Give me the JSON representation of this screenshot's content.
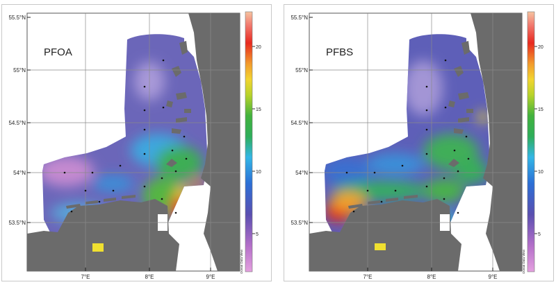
{
  "panels": [
    {
      "title": "PFOA",
      "lat_labels": [
        "55.5°N",
        "55°N",
        "54.5°N",
        "54°N",
        "53.5°N"
      ],
      "lon_labels": [
        "7°E",
        "8°E",
        "9°E"
      ],
      "colorbar_ticks": [
        "20",
        "15",
        "10",
        "5"
      ],
      "watermark": "Ocean Data View"
    },
    {
      "title": "PFBS",
      "lat_labels": [
        "55.5°N",
        "55°N",
        "54.5°N",
        "54°N",
        "53.5°N"
      ],
      "lon_labels": [
        "7°E",
        "8°E",
        "9°E"
      ],
      "colorbar_ticks": [
        "20",
        "15",
        "10",
        "5"
      ],
      "watermark": "Ocean Data View"
    }
  ],
  "colors": {
    "land": "#6b6b6b",
    "grid": "#8a8a8a",
    "low": "#6f63b5",
    "mid": "#39a843",
    "high": "#e1261c"
  }
}
